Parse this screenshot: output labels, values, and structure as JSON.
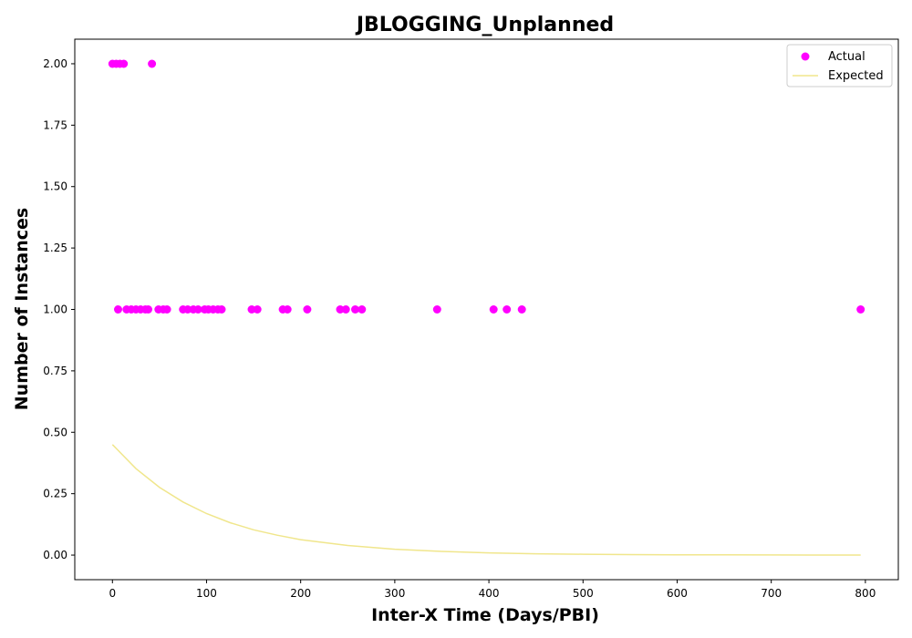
{
  "chart_data": {
    "type": "scatter",
    "title": "JBLOGGING_Unplanned",
    "xlabel": "Inter-X Time (Days/PBI)",
    "ylabel": "Number of Instances",
    "xlim": [
      -40,
      835
    ],
    "ylim": [
      -0.1,
      2.1
    ],
    "xticks": [
      0,
      100,
      200,
      300,
      400,
      500,
      600,
      700,
      800
    ],
    "yticks": [
      0.0,
      0.25,
      0.5,
      0.75,
      1.0,
      1.25,
      1.5,
      1.75,
      2.0
    ],
    "ytick_labels": [
      "0.00",
      "0.25",
      "0.50",
      "0.75",
      "1.00",
      "1.25",
      "1.50",
      "1.75",
      "2.00"
    ],
    "grid": false,
    "legend": {
      "placement": "top-right"
    },
    "series": [
      {
        "name": "Actual",
        "kind": "scatter",
        "color": "#ff00ff",
        "points": [
          [
            0,
            2
          ],
          [
            4,
            2
          ],
          [
            8,
            2
          ],
          [
            12,
            2
          ],
          [
            42,
            2
          ],
          [
            6,
            1
          ],
          [
            15,
            1
          ],
          [
            20,
            1
          ],
          [
            25,
            1
          ],
          [
            30,
            1
          ],
          [
            35,
            1
          ],
          [
            38,
            1
          ],
          [
            49,
            1
          ],
          [
            54,
            1
          ],
          [
            58,
            1
          ],
          [
            75,
            1
          ],
          [
            80,
            1
          ],
          [
            86,
            1
          ],
          [
            91,
            1
          ],
          [
            98,
            1
          ],
          [
            102,
            1
          ],
          [
            107,
            1
          ],
          [
            112,
            1
          ],
          [
            116,
            1
          ],
          [
            148,
            1
          ],
          [
            154,
            1
          ],
          [
            181,
            1
          ],
          [
            186,
            1
          ],
          [
            207,
            1
          ],
          [
            242,
            1
          ],
          [
            248,
            1
          ],
          [
            258,
            1
          ],
          [
            265,
            1
          ],
          [
            345,
            1
          ],
          [
            405,
            1
          ],
          [
            419,
            1
          ],
          [
            435,
            1
          ],
          [
            795,
            1
          ]
        ]
      },
      {
        "name": "Expected",
        "kind": "line",
        "color": "#f0e68c",
        "x": [
          0,
          25,
          50,
          75,
          100,
          125,
          150,
          175,
          200,
          250,
          300,
          350,
          400,
          450,
          500,
          550,
          600,
          650,
          700,
          750,
          795
        ],
        "y": [
          0.45,
          0.352,
          0.276,
          0.216,
          0.169,
          0.132,
          0.103,
          0.081,
          0.063,
          0.039,
          0.024,
          0.015,
          0.009,
          0.0055,
          0.0034,
          0.0021,
          0.0013,
          0.0008,
          0.0005,
          0.0003,
          0.0002
        ]
      }
    ]
  }
}
